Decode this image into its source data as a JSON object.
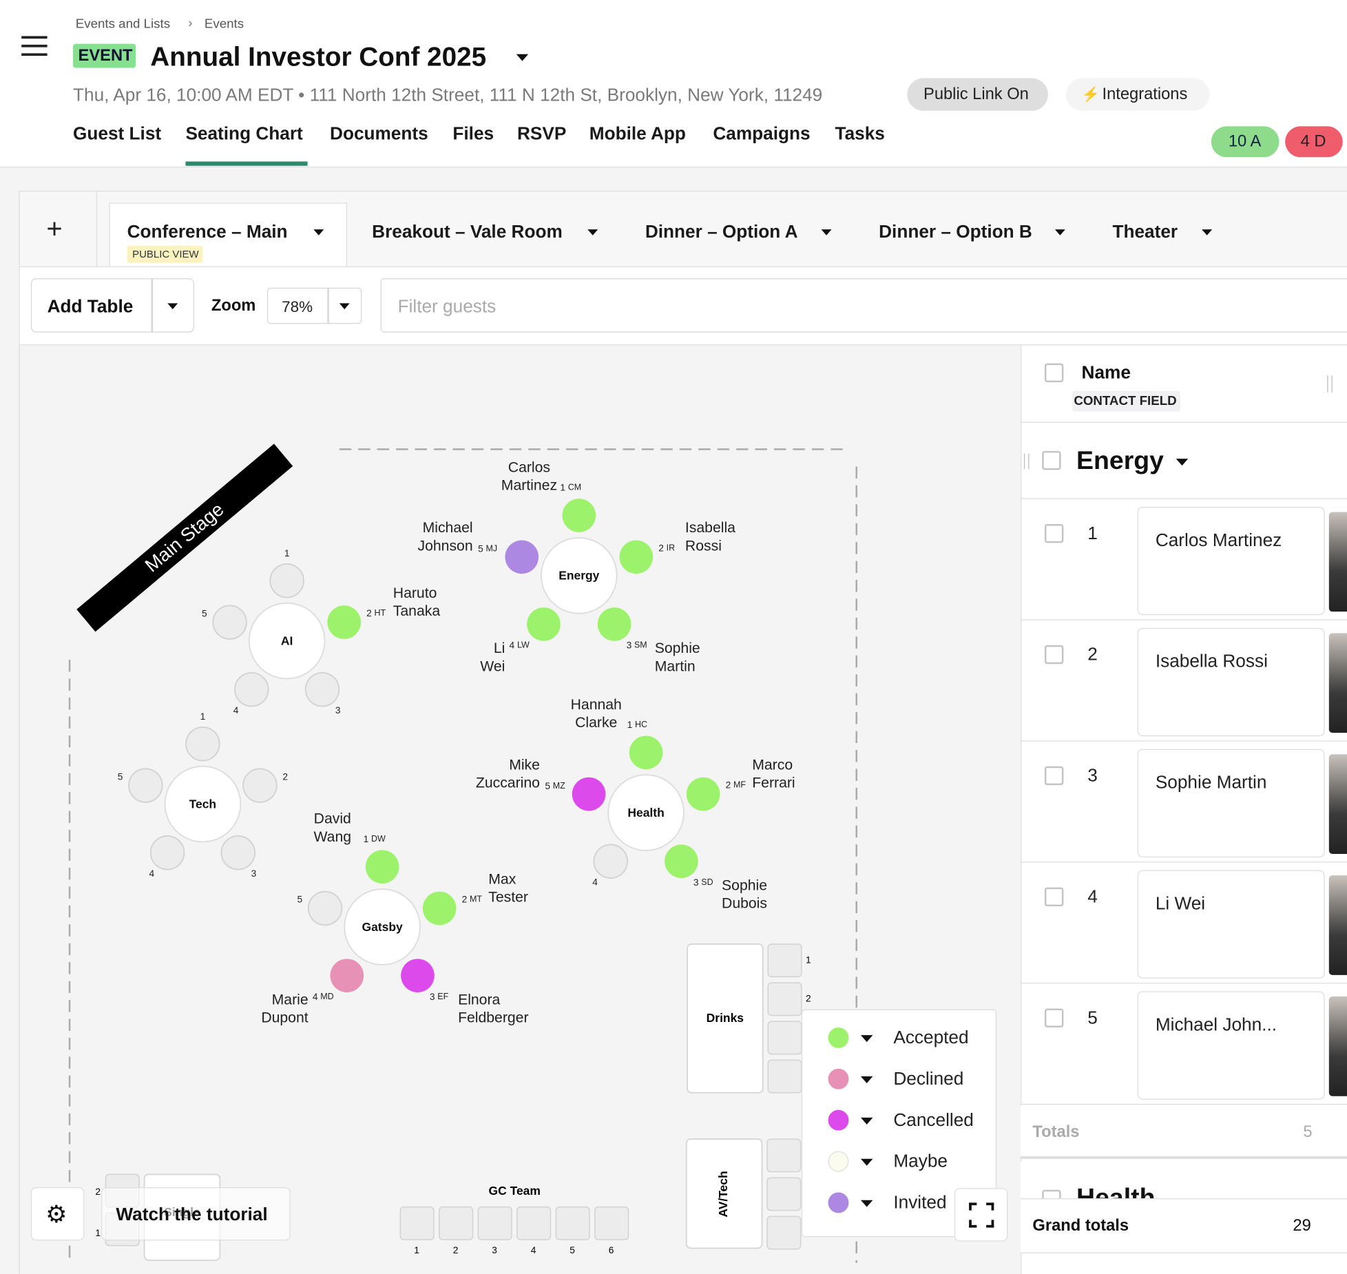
{
  "breadcrumb": [
    "Events and Lists",
    "Events"
  ],
  "event": {
    "badge": "EVENT",
    "title": "Annual Investor Conf 2025",
    "details": "Thu, Apr 16, 10:00 AM EDT • 111 North 12th Street, 111 N 12th St, Brooklyn, New York, 11249",
    "public_link": "Public Link On",
    "integrations": "Integrations"
  },
  "nav": [
    "Guest List",
    "Seating Chart",
    "Documents",
    "Files",
    "RSVP",
    "Mobile App",
    "Campaigns",
    "Tasks"
  ],
  "counts": [
    "10 A",
    "4 D"
  ],
  "rooms": [
    {
      "name": "Conference – Main",
      "badge": "PUBLIC VIEW"
    },
    {
      "name": "Breakout – Vale Room"
    },
    {
      "name": "Dinner – Option A"
    },
    {
      "name": "Dinner – Option B"
    },
    {
      "name": "Theater"
    }
  ],
  "toolbar": {
    "add_table": "Add Table",
    "zoom_label": "Zoom",
    "zoom": "78%",
    "filter_placeholder": "Filter guests"
  },
  "stage": "Main Stage",
  "tables": [
    {
      "name": "Energy",
      "seats": [
        {
          "number": "1",
          "initials": "CM",
          "guest": [
            "Carlos",
            "Martinez"
          ],
          "color": "#9df26c"
        },
        {
          "number": "2",
          "initials": "IR",
          "guest": [
            "Isabella",
            "Rossi"
          ],
          "color": "#9df26c"
        },
        {
          "number": "3",
          "initials": "SM",
          "guest": [
            "Sophie",
            "Martin"
          ],
          "color": "#9df26c"
        },
        {
          "number": "4",
          "initials": "LW",
          "guest": [
            "Li",
            "Wei"
          ],
          "color": "#9df26c"
        },
        {
          "number": "5",
          "initials": "MJ",
          "guest": [
            "Michael",
            "Johnson"
          ],
          "color": "#ad88e2"
        }
      ]
    },
    {
      "name": "AI",
      "seats": [
        {
          "number": "1"
        },
        {
          "number": "2",
          "initials": "HT",
          "guest": [
            "Haruto",
            "Tanaka"
          ],
          "color": "#9df26c"
        },
        {
          "number": "3"
        },
        {
          "number": "4"
        },
        {
          "number": "5"
        }
      ]
    },
    {
      "name": "Tech",
      "seats": [
        {
          "number": "1"
        },
        {
          "number": "2"
        },
        {
          "number": "3"
        },
        {
          "number": "4"
        },
        {
          "number": "5"
        }
      ]
    },
    {
      "name": "Health",
      "seats": [
        {
          "number": "1",
          "initials": "HC",
          "guest": [
            "Hannah",
            "Clarke"
          ],
          "color": "#9df26c"
        },
        {
          "number": "2",
          "initials": "MF",
          "guest": [
            "Marco",
            "Ferrari"
          ],
          "color": "#9df26c"
        },
        {
          "number": "3",
          "initials": "SD",
          "guest": [
            "Sophie",
            "Dubois"
          ],
          "color": "#9df26c"
        },
        {
          "number": "4"
        },
        {
          "number": "5",
          "initials": "MZ",
          "guest": [
            "Mike",
            "Zuccarino"
          ],
          "color": "#dc4aec"
        }
      ]
    },
    {
      "name": "Gatsby",
      "seats": [
        {
          "number": "1",
          "initials": "DW",
          "guest": [
            "David",
            "Wang"
          ],
          "color": "#9df26c"
        },
        {
          "number": "2",
          "initials": "MT",
          "guest": [
            "Max",
            "Tester"
          ],
          "color": "#9df26c"
        },
        {
          "number": "3",
          "initials": "EF",
          "guest": [
            "Elnora",
            "Feldberger"
          ],
          "color": "#dc4aec"
        },
        {
          "number": "4",
          "initials": "MD",
          "guest": [
            "Marie",
            "Dupont"
          ],
          "color": "#e891b6"
        },
        {
          "number": "5"
        }
      ]
    }
  ],
  "drinks": {
    "name": "Drinks",
    "seats": [
      "1",
      "2"
    ]
  },
  "av_tech": {
    "name": "AV/Tech"
  },
  "gc_team": {
    "name": "GC Team",
    "seats": [
      "1",
      "2",
      "3",
      "4",
      "5",
      "6"
    ]
  },
  "single": {
    "name": "Single",
    "seats": [
      "2",
      "1"
    ]
  },
  "legend": [
    {
      "label": "Accepted",
      "color": "#9df26c"
    },
    {
      "label": "Declined",
      "color": "#e891b6"
    },
    {
      "label": "Cancelled",
      "color": "#dc4aec"
    },
    {
      "label": "Maybe",
      "color": "#fbfbef"
    },
    {
      "label": "Invited",
      "color": "#ad88e2"
    }
  ],
  "tutorial": "Watch the tutorial",
  "side_panel": {
    "name_header": "Name",
    "contact_field": "CONTACT FIELD",
    "group": "Energy",
    "rows": [
      {
        "number": "1",
        "name": "Carlos Martinez"
      },
      {
        "number": "2",
        "name": "Isabella Rossi"
      },
      {
        "number": "3",
        "name": "Sophie Martin"
      },
      {
        "number": "4",
        "name": "Li Wei"
      },
      {
        "number": "5",
        "name": "Michael John..."
      }
    ],
    "totals_label": "Totals",
    "totals": 5,
    "next_group": "Health",
    "grand_totals_label": "Grand totals",
    "grand_totals": 29
  }
}
